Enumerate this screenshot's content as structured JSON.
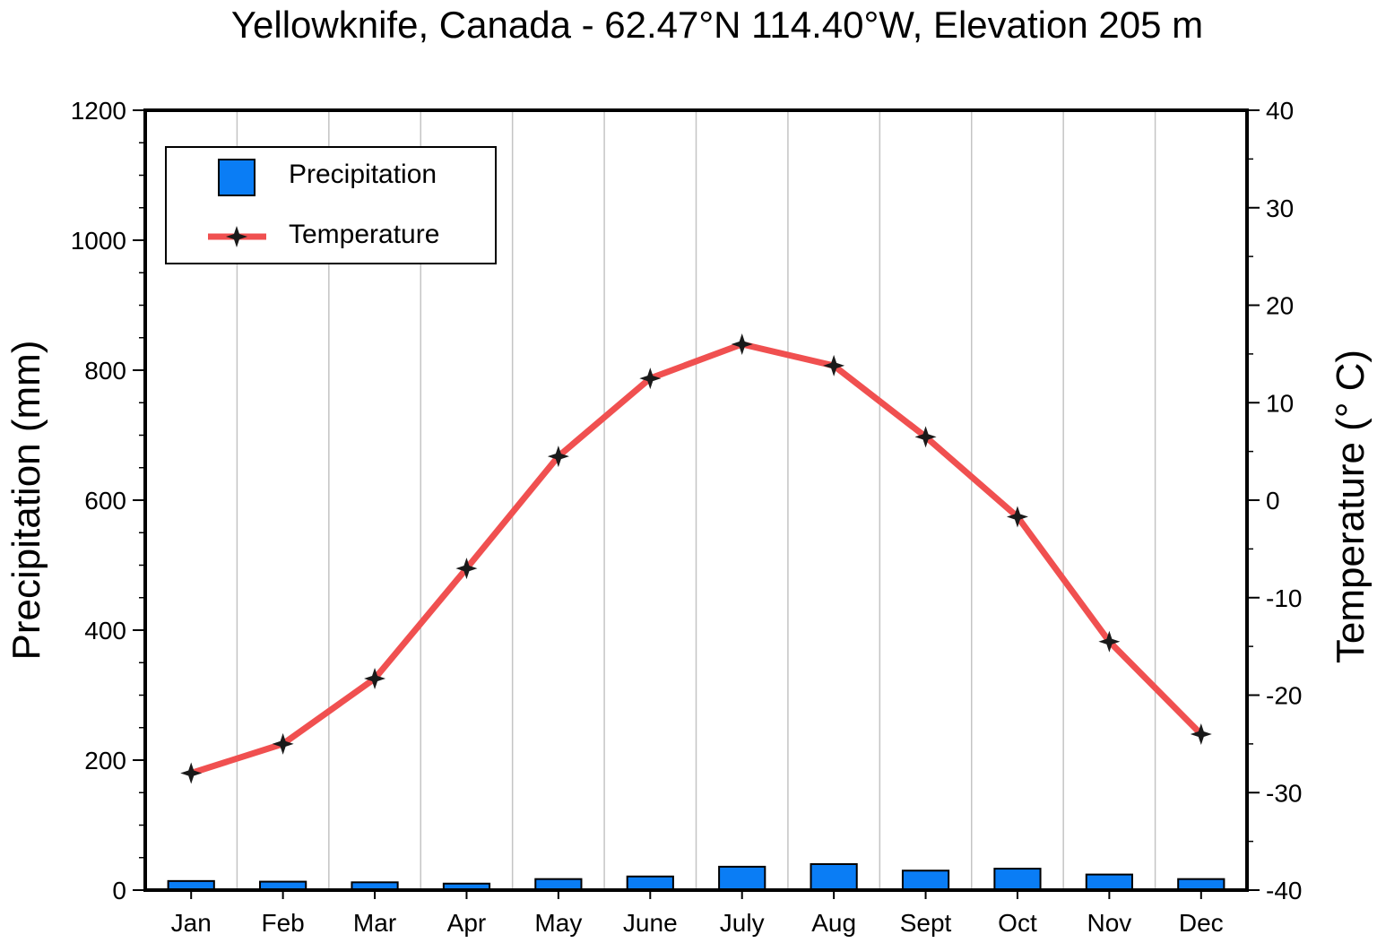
{
  "chart_data": {
    "type": "bar+line",
    "title": "Yellowknife, Canada - 62.47°N 114.40°W, Elevation 205 m",
    "categories": [
      "Jan",
      "Feb",
      "Mar",
      "Apr",
      "May",
      "June",
      "July",
      "Aug",
      "Sept",
      "Oct",
      "Nov",
      "Dec"
    ],
    "series": [
      {
        "name": "Precipitation",
        "type": "bar",
        "axis": "left",
        "color": "#0a7df5",
        "values": [
          14,
          13,
          12,
          10,
          17,
          21,
          36,
          40,
          30,
          33,
          24,
          17
        ]
      },
      {
        "name": "Temperature",
        "type": "line",
        "axis": "right",
        "color": "#f05050",
        "marker_color": "#1a1a1a",
        "values": [
          -28.0,
          -25.0,
          -18.3,
          -7.0,
          4.5,
          12.5,
          16.0,
          13.8,
          6.5,
          -1.7,
          -14.5,
          -24.0
        ]
      }
    ],
    "left_axis": {
      "label": "Precipitation (mm)",
      "ylim": [
        0,
        1200
      ],
      "ticks": [
        0,
        200,
        400,
        600,
        800,
        1000,
        1200
      ]
    },
    "right_axis": {
      "label": "Temperature (° C)",
      "ylim": [
        -40,
        40
      ],
      "ticks": [
        -40,
        -30,
        -20,
        -10,
        0,
        10,
        20,
        30,
        40
      ]
    },
    "legend": {
      "position": "top-left",
      "items": [
        "Precipitation",
        "Temperature"
      ]
    },
    "grid": "vertical"
  }
}
